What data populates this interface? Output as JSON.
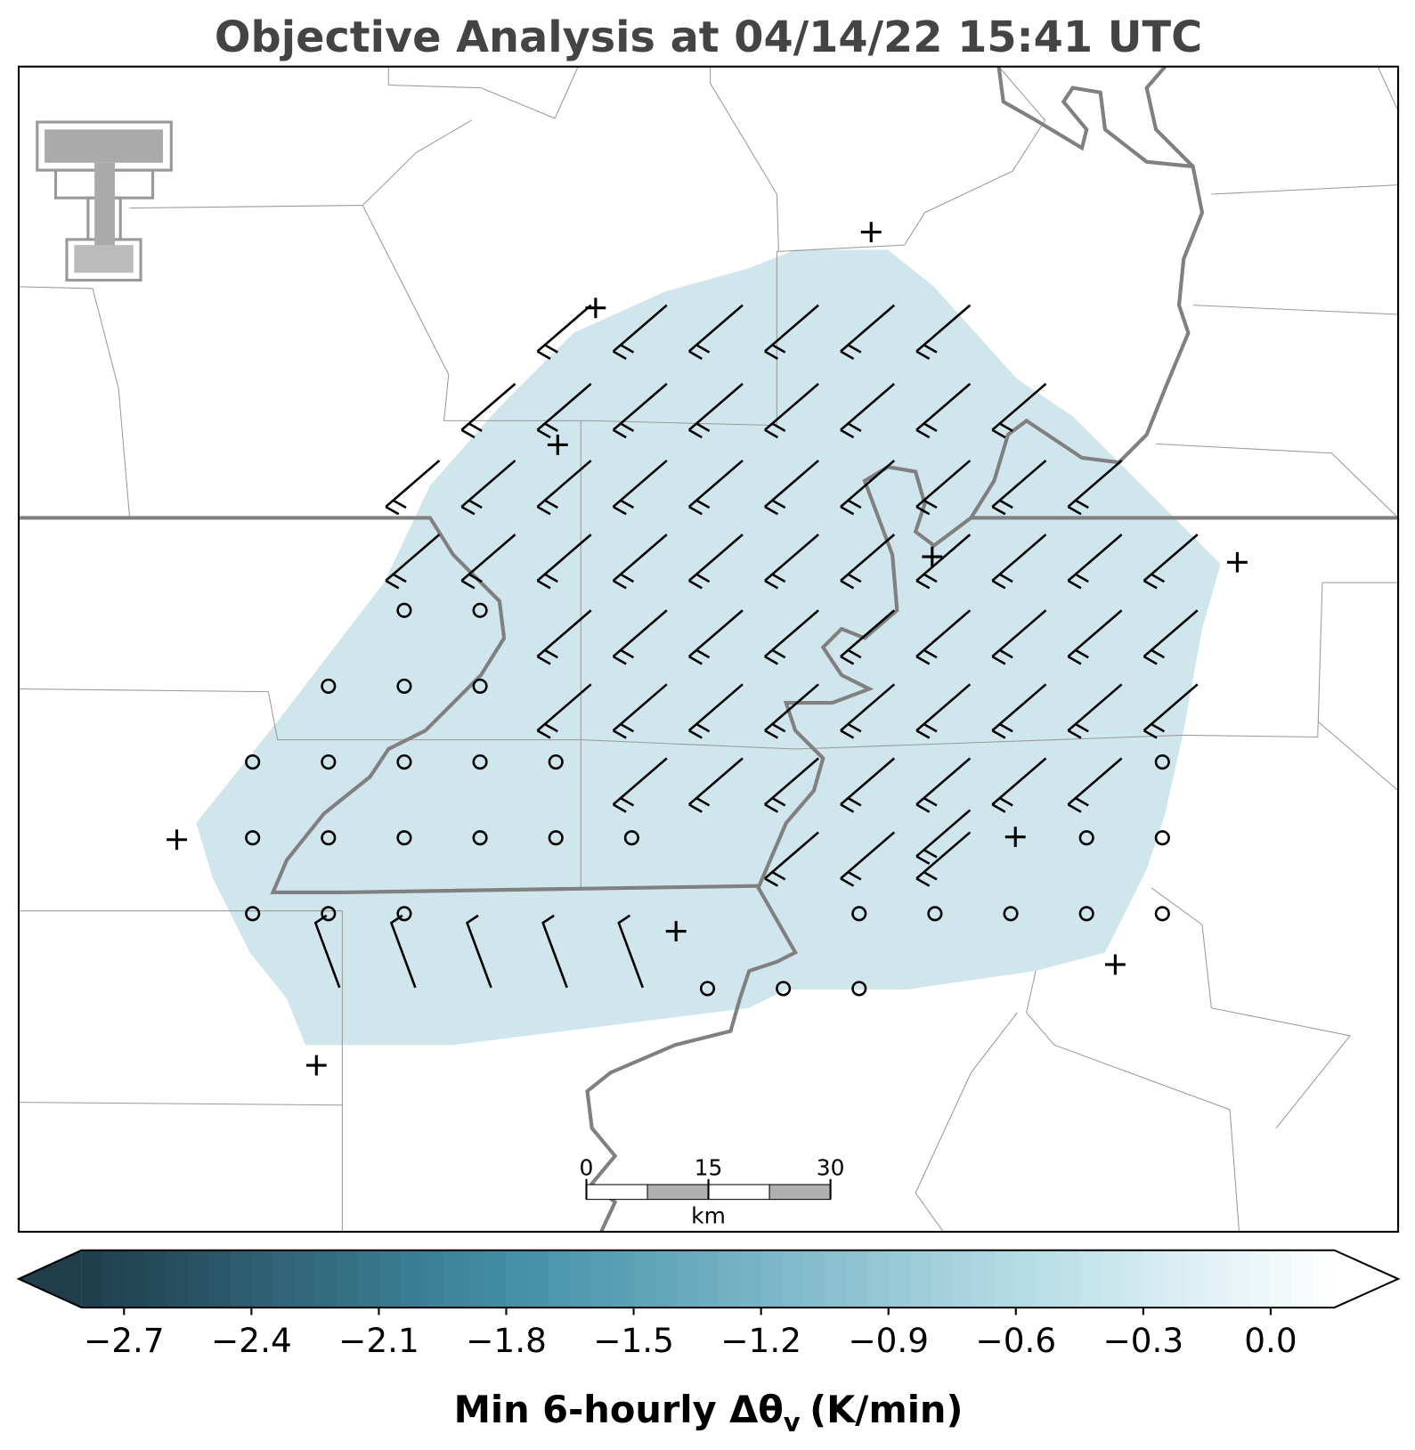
{
  "title": "Objective Analysis at 04/14/22 15:41 UTC",
  "colorbar": {
    "label": "Min 6-hourly Δθ",
    "label_sub": "v",
    "label_unit": "(K/min)",
    "clim": [
      -2.8,
      0.15
    ],
    "ticks": [
      {
        "value": -2.7,
        "label": "−2.7"
      },
      {
        "value": -2.4,
        "label": "−2.4"
      },
      {
        "value": -2.1,
        "label": "−2.1"
      },
      {
        "value": -1.8,
        "label": "−1.8"
      },
      {
        "value": -1.5,
        "label": "−1.5"
      },
      {
        "value": -1.2,
        "label": "−1.2"
      },
      {
        "value": -0.9,
        "label": "−0.9"
      },
      {
        "value": -0.6,
        "label": "−0.6"
      },
      {
        "value": -0.3,
        "label": "−0.3"
      },
      {
        "value": 0,
        "label": "0.0"
      }
    ]
  },
  "scale_bar": {
    "ticks": [
      0,
      15,
      30
    ],
    "unit": "km"
  }
}
